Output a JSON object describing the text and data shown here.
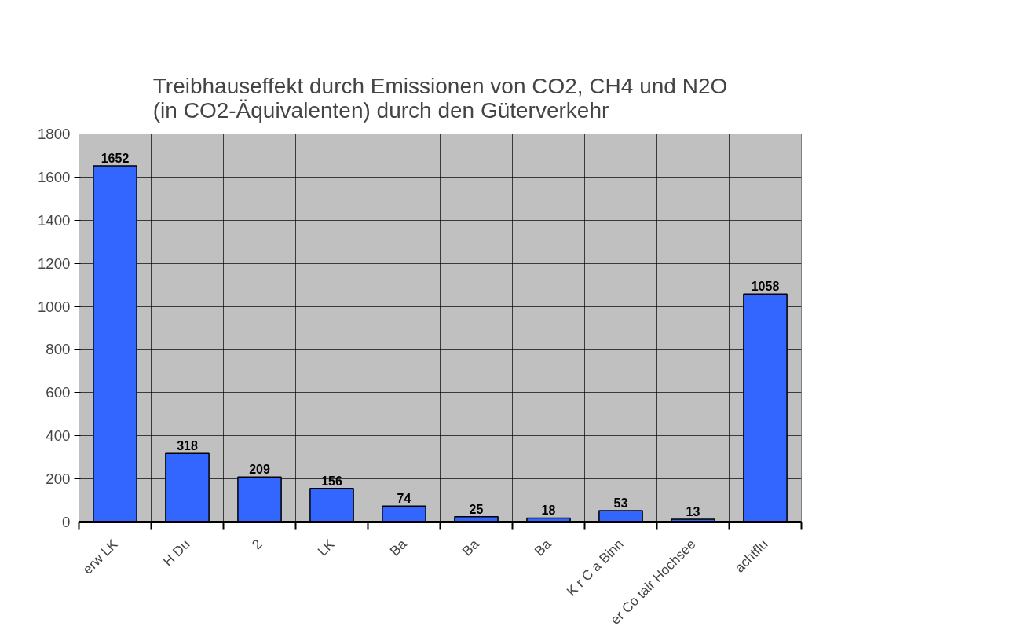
{
  "chart_data": {
    "type": "bar",
    "title": "Treibhauseffekt durch Emissionen von CO2, CH4 und N2O\n(in CO2-Äquivalenten) durch den Güterverkehr",
    "categories": [
      "erw LK",
      "H Du",
      "2",
      "LK",
      "Ba",
      "Ba",
      "Ba",
      "K r C a Binn",
      "er Co tair Hochsee",
      "achtflu"
    ],
    "values": [
      1652,
      318,
      209,
      156,
      74,
      25,
      18,
      53,
      13,
      1058
    ],
    "color": "#3366ff",
    "ylim": [
      0,
      1800
    ],
    "yticks": [
      0,
      200,
      400,
      600,
      800,
      1000,
      1200,
      1400,
      1600,
      1800
    ],
    "grid": true,
    "data_labels": true
  }
}
